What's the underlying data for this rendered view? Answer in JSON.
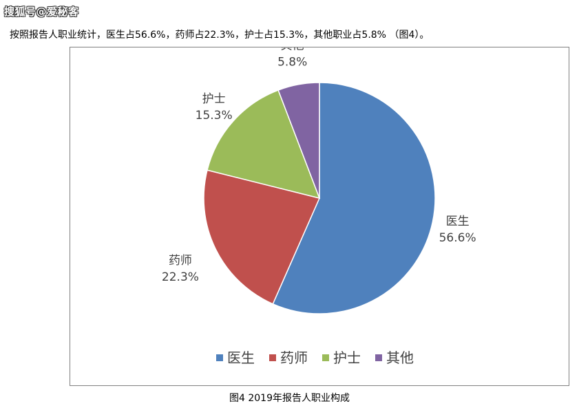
{
  "watermark": "搜狐号@爱秘客",
  "intro_text": "按照报告人职业统计，医生占56.6%，药师占22.3%，护士占15.3%，其他职业占5.8% （图4）。",
  "caption": "图4 2019年报告人职业构成",
  "chart_data": {
    "type": "pie",
    "title": "",
    "categories": [
      "医生",
      "药师",
      "护士",
      "其他"
    ],
    "values": [
      56.6,
      22.3,
      15.3,
      5.8
    ],
    "value_labels": [
      "56.6%",
      "22.3%",
      "15.3%",
      "5.8%"
    ],
    "colors": [
      "#4f81bd",
      "#c0504d",
      "#9bbb59",
      "#8064a2"
    ],
    "start": "12 o'clock",
    "direction": "clockwise",
    "legend": "bottom",
    "legend_entries": [
      "医生",
      "药师",
      "护士",
      "其他"
    ]
  }
}
